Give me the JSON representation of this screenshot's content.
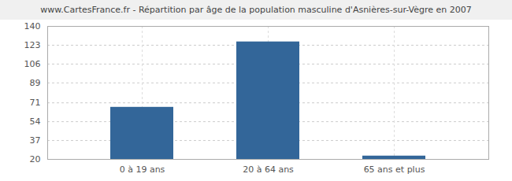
{
  "chart_data": {
    "type": "bar",
    "title": "www.CartesFrance.fr - Répartition par âge de la population masculine d'Asnières-sur-Vègre en 2007",
    "categories": [
      "0 à 19 ans",
      "20 à 64 ans",
      "65 ans et plus"
    ],
    "values": [
      67,
      126,
      23
    ],
    "color": "#336699",
    "ylim": [
      20,
      140
    ],
    "yticks": [
      20,
      37,
      54,
      71,
      89,
      106,
      123,
      140
    ],
    "grid": true
  }
}
